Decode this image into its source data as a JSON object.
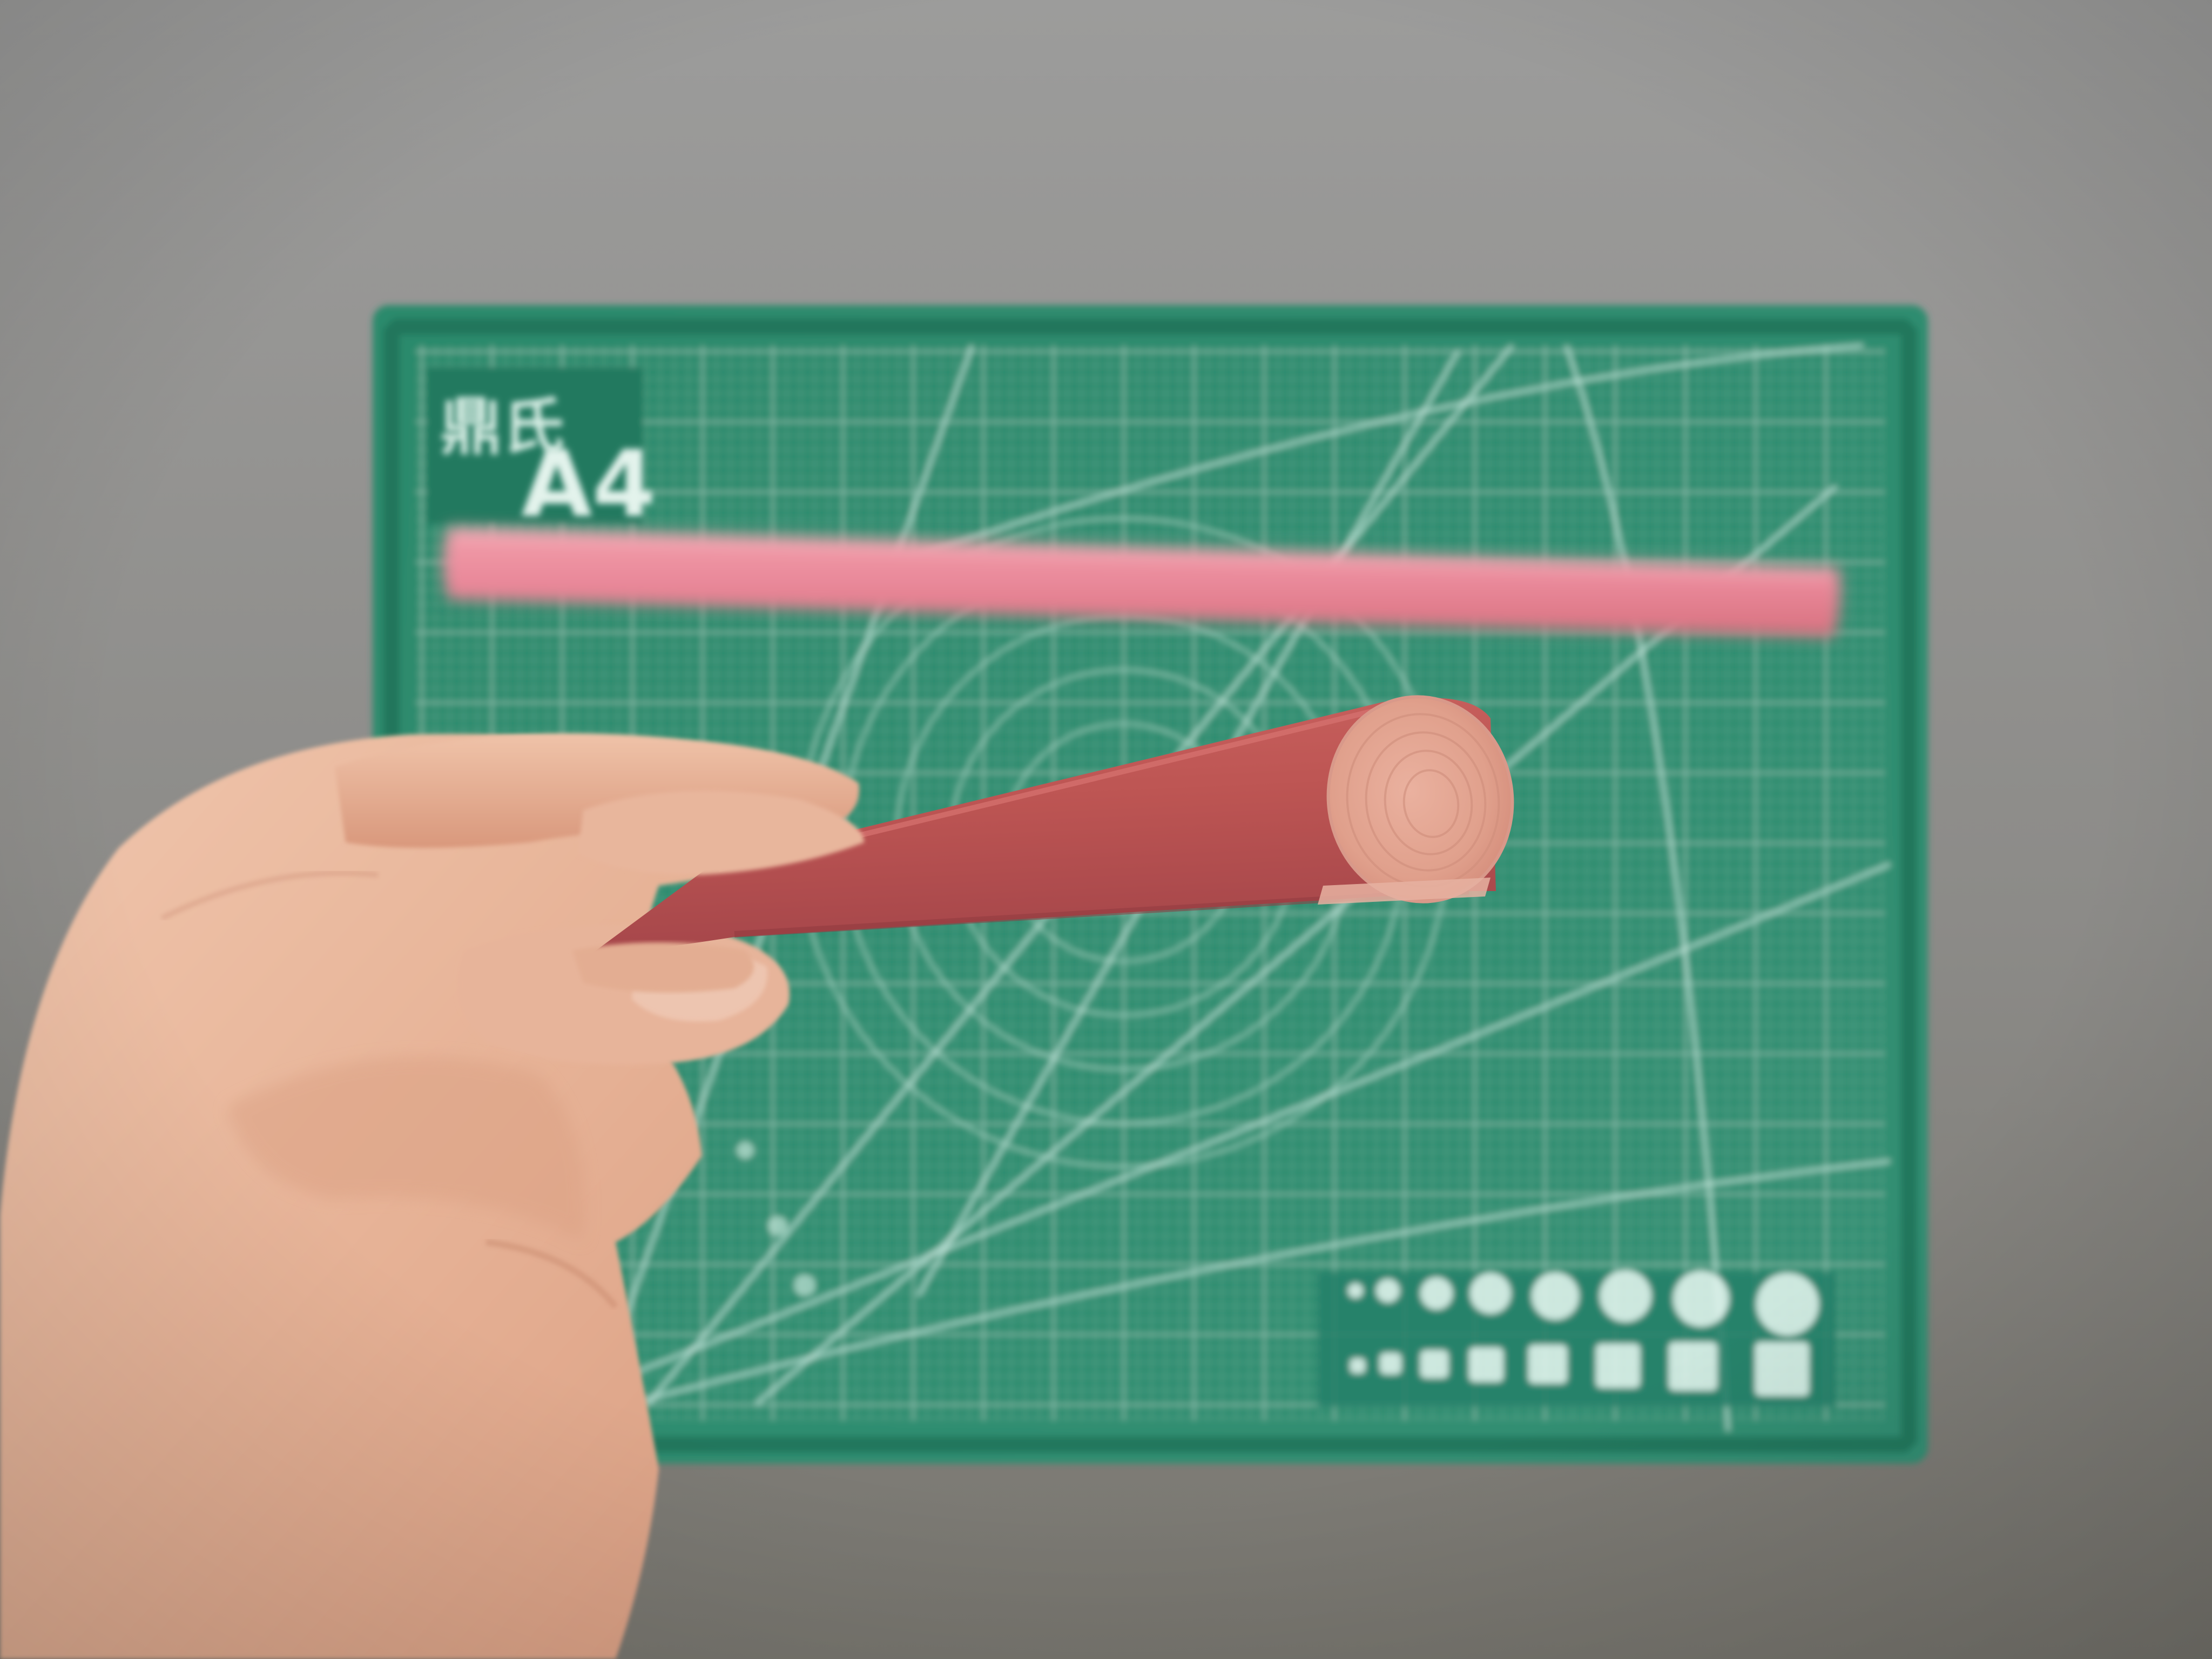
{
  "scene": {
    "description_tags": [
      "cutting-mat",
      "pink-rod",
      "hand",
      "wall"
    ],
    "colors": {
      "wall_top": "#9a9a99",
      "wall_bottom": "#7c7a74",
      "mat_green": "#2f8a6e",
      "mat_grid": "#bfe3d6",
      "rod_blurred": "#ea8a99",
      "rod_held": "#c25a58",
      "rod_face": "#e6a593",
      "skin": "#e9b99f"
    }
  },
  "mat": {
    "label_brand": "鼎氏",
    "label_size": "A4"
  }
}
